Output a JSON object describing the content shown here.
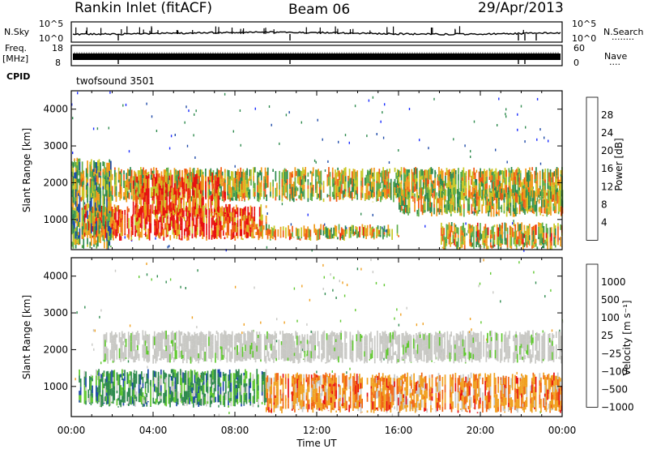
{
  "header": {
    "station": "Rankin Inlet (fitACF)",
    "beam": "Beam 06",
    "date": "29/Apr/2013"
  },
  "top_panels": {
    "nsky_label": "N.Sky",
    "nsearch_label": "N.Search",
    "nsearch_dots": "········",
    "freq_label_1": "Freq.",
    "freq_label_2": "[MHz]",
    "nave_label": "Nave",
    "nave_dots": "····",
    "cpid_label": "CPID",
    "cpid_value": "twofsound 3501",
    "noise_ticks": [
      "10^5",
      "10^0"
    ],
    "freq_ticks": [
      "18",
      "8"
    ],
    "nave_ticks": [
      "60",
      "0"
    ]
  },
  "chart_data": [
    {
      "type": "heatmap",
      "title": "",
      "ylabel": "Slant Range [km]",
      "xlabel": "",
      "x_range": [
        0,
        24
      ],
      "ylim": [
        180,
        4500
      ],
      "yticks": [
        "1000",
        "2000",
        "3000",
        "4000"
      ],
      "colorbar_label": "Power [dB]",
      "colorbar_ticks": [
        "4",
        "8",
        "12",
        "16",
        "20",
        "24",
        "28"
      ],
      "colorbar_colors": [
        "#1a2cff",
        "#1e4aa8",
        "#2e8a4e",
        "#5fae4a",
        "#c8c826",
        "#f09a1a",
        "#f05a14",
        "#e81010"
      ],
      "bands": [
        {
          "t0": 0.2,
          "t1": 24,
          "r0": 1550,
          "r1": 2350,
          "level": 0.55
        },
        {
          "t0": 0.5,
          "t1": 9.5,
          "r0": 500,
          "r1": 1350,
          "level": 0.85
        },
        {
          "t0": 3,
          "t1": 7.5,
          "r0": 1100,
          "r1": 2200,
          "level": 0.8
        },
        {
          "t0": 9,
          "t1": 16,
          "r0": 500,
          "r1": 800,
          "level": 0.6
        },
        {
          "t0": 16,
          "t1": 24,
          "r0": 1150,
          "r1": 1800,
          "level": 0.55
        },
        {
          "t0": 18,
          "t1": 24,
          "r0": 250,
          "r1": 850,
          "level": 0.6
        },
        {
          "t0": 0,
          "t1": 2,
          "r0": 250,
          "r1": 2600,
          "level": 0.45
        }
      ]
    },
    {
      "type": "heatmap",
      "title": "",
      "ylabel": "Slant Range [km]",
      "xlabel": "Time UT",
      "x_range": [
        0,
        24
      ],
      "xticks": [
        "00:00",
        "04:00",
        "08:00",
        "12:00",
        "16:00",
        "20:00",
        "00:00"
      ],
      "ylim": [
        180,
        4500
      ],
      "yticks": [
        "1000",
        "2000",
        "3000",
        "4000"
      ],
      "colorbar_label": "Velocity [m s⁻¹]",
      "colorbar_ticks": [
        "1000",
        "500",
        "100",
        "25",
        "−25",
        "−100",
        "−500",
        "−1000"
      ],
      "colorbar_colors": [
        "#1a2cff",
        "#1e4aa8",
        "#2e8a4e",
        "#5fc82e",
        "#c8c8c4",
        "#f0a020",
        "#f06414",
        "#e81010"
      ],
      "bands": [
        {
          "t0": 1.5,
          "t1": 24,
          "r0": 1700,
          "r1": 2450,
          "kind": "ground"
        },
        {
          "t0": 0.3,
          "t1": 9.5,
          "r0": 500,
          "r1": 1400,
          "kind": "positive"
        },
        {
          "t0": 9.5,
          "t1": 24,
          "r0": 350,
          "r1": 1300,
          "kind": "negative"
        }
      ]
    }
  ]
}
